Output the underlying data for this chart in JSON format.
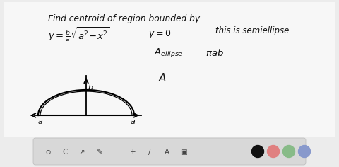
{
  "main_bg": "#ececec",
  "content_bg": "#f5f5f5",
  "toolbar_bg": "#d8d8d8",
  "text_color": "#111111",
  "figsize": [
    4.8,
    2.36
  ],
  "dpi": 100,
  "label_neg_a": "-a",
  "label_a": "a",
  "label_b": "b",
  "toolbar_colors": [
    "#111111",
    "#e08080",
    "#88bb88",
    "#8899cc"
  ]
}
